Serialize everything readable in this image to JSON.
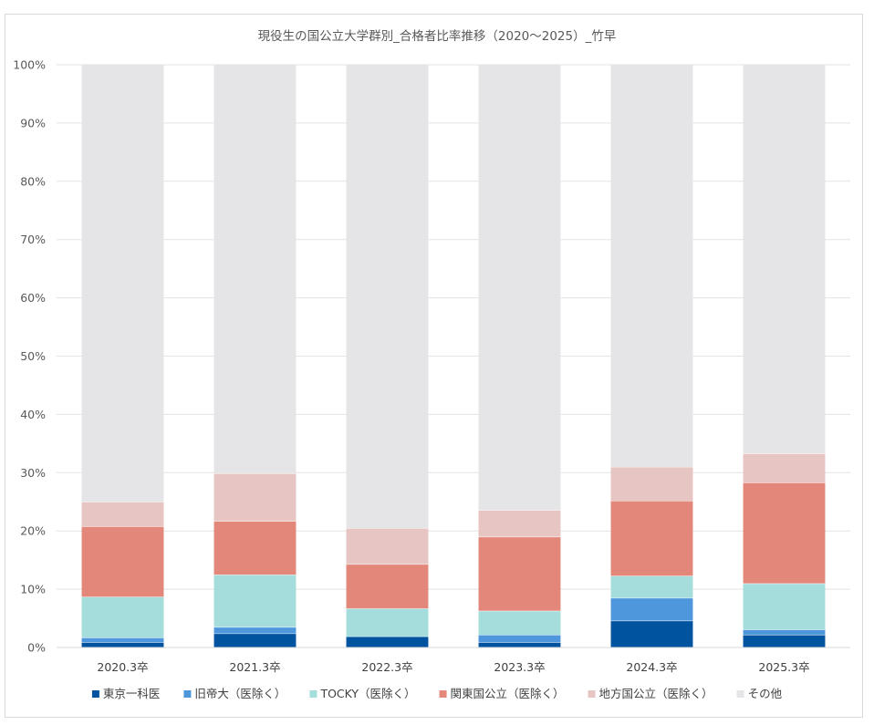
{
  "chart_data": {
    "type": "bar",
    "stacked": true,
    "title": "現役生の国公立大学群別_合格者比率推移（2020～2025）_竹早",
    "xlabel": "",
    "ylabel": "",
    "ylim": [
      0,
      100
    ],
    "y_ticks": [
      "0%",
      "10%",
      "20%",
      "30%",
      "40%",
      "50%",
      "60%",
      "70%",
      "80%",
      "90%",
      "100%"
    ],
    "grid": true,
    "legend_position": "bottom",
    "categories": [
      "2020.3卒",
      "2021.3卒",
      "2022.3卒",
      "2023.3卒",
      "2024.3卒",
      "2025.3卒"
    ],
    "series": [
      {
        "name": "東京一科医",
        "color": "#00539f",
        "values": [
          0.9,
          2.4,
          1.9,
          0.9,
          4.6,
          2.2
        ]
      },
      {
        "name": "旧帝大（医除く）",
        "color": "#4e97dc",
        "values": [
          0.8,
          1.1,
          0.0,
          1.3,
          3.9,
          0.9
        ]
      },
      {
        "name": "TOCKY（医除く）",
        "color": "#a5dddd",
        "values": [
          7.0,
          9.0,
          4.8,
          4.1,
          3.8,
          7.9
        ]
      },
      {
        "name": "関東国公立（医除く）",
        "color": "#e4877b",
        "values": [
          12.1,
          9.2,
          7.6,
          12.7,
          12.9,
          17.3
        ]
      },
      {
        "name": "地方国公立（医除く）",
        "color": "#e6c5c2",
        "values": [
          4.2,
          8.2,
          6.2,
          4.6,
          5.8,
          5.0
        ]
      },
      {
        "name": "その他",
        "color": "#e5e5e7",
        "values": [
          75.0,
          70.1,
          79.5,
          76.4,
          69.0,
          66.7
        ]
      }
    ]
  }
}
